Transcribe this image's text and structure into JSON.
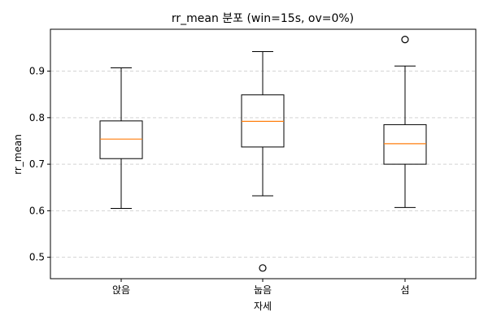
{
  "chart_data": {
    "type": "box",
    "title": "rr_mean 분포 (win=15s, ov=0%)",
    "xlabel": "자세",
    "ylabel": "rr_mean",
    "categories": [
      "앉음",
      "눕음",
      "섬"
    ],
    "ylim": [
      0.454,
      0.99
    ],
    "yticks": [
      0.5,
      0.6,
      0.7,
      0.8,
      0.9
    ],
    "ytick_labels": [
      "0.5",
      "0.6",
      "0.7",
      "0.8",
      "0.9"
    ],
    "grid": "horizontal-dashed",
    "boxes": [
      {
        "category": "앉음",
        "whisker_low": 0.605,
        "q1": 0.712,
        "median": 0.754,
        "q3": 0.793,
        "whisker_high": 0.907,
        "outliers": []
      },
      {
        "category": "눕음",
        "whisker_low": 0.632,
        "q1": 0.737,
        "median": 0.792,
        "q3": 0.849,
        "whisker_high": 0.942,
        "outliers": [
          0.477
        ]
      },
      {
        "category": "섬",
        "whisker_low": 0.607,
        "q1": 0.7,
        "median": 0.744,
        "q3": 0.785,
        "whisker_high": 0.911,
        "outliers": [
          0.968
        ]
      }
    ],
    "colors": {
      "box_edge": "#000000",
      "median": "#ff7f0e",
      "grid": "#d3d3d3",
      "outlier_edge": "#000000"
    }
  }
}
